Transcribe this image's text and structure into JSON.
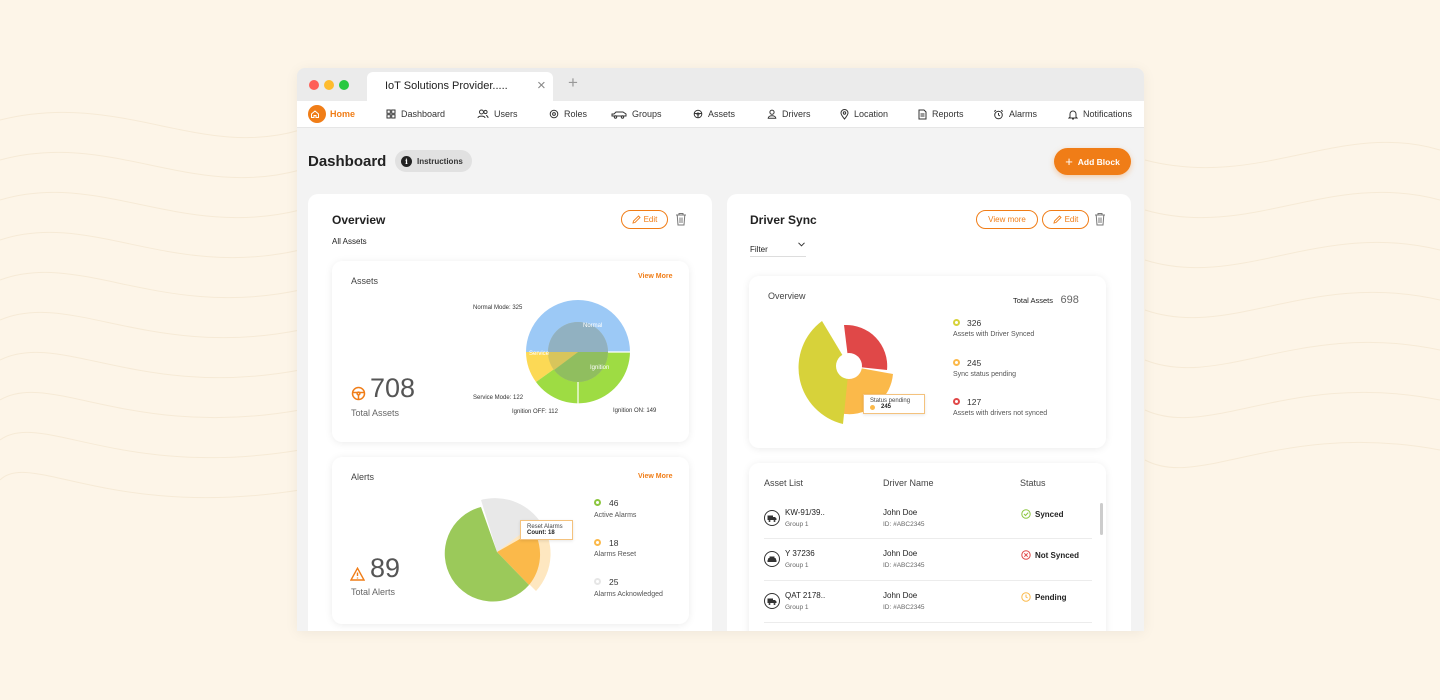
{
  "browser": {
    "tab_title": "IoT Solutions Provider.....",
    "tab_close": "×",
    "new_tab": "+"
  },
  "nav": {
    "home": "Home",
    "items": [
      "Dashboard",
      "Users",
      "Roles",
      "Groups",
      "Assets",
      "Drivers",
      "Location",
      "Reports",
      "Alarms",
      "Notifications"
    ]
  },
  "page": {
    "title": "Dashboard",
    "instructions": "Instructions",
    "add_block": "Add Block"
  },
  "overview_panel": {
    "title": "Overview",
    "edit": "Edit",
    "subtitle": "All Assets",
    "assets_card": {
      "title": "Assets",
      "view_more": "View More",
      "total": "708",
      "total_label": "Total Assets",
      "segment_labels": [
        "Normal",
        "Service",
        "Ignition"
      ],
      "callouts": {
        "normal": "Normal Mode: 325",
        "service": "Service Mode: 122",
        "ign_off": "Ignition OFF: 112",
        "ign_on": "Ignition ON: 149"
      }
    },
    "alerts_card": {
      "title": "Alerts",
      "view_more": "View More",
      "total": "89",
      "total_label": "Total Alerts",
      "tooltip_title": "Reset Alarms",
      "tooltip_count_label": "Count:",
      "tooltip_count": "18",
      "legend": [
        {
          "value": "46",
          "label": "Active Alarms",
          "color": "#8cc63f"
        },
        {
          "value": "18",
          "label": "Alarms Reset",
          "color": "#fbb94a"
        },
        {
          "value": "25",
          "label": "Alarms Acknowledged",
          "color": "#e6e6e6"
        }
      ]
    }
  },
  "driver_panel": {
    "title": "Driver Sync",
    "view_more": "View more",
    "edit": "Edit",
    "filter": "Filter",
    "overview_card": {
      "title": "Overview",
      "total_label": "Total Assets",
      "total": "698",
      "tooltip_title": "Status pending",
      "tooltip_value": "245",
      "legend": [
        {
          "value": "326",
          "label": "Assets with Driver Synced",
          "color": "#d7d23a"
        },
        {
          "value": "245",
          "label": "Sync status pending",
          "color": "#fbb94a"
        },
        {
          "value": "127",
          "label": "Assets with drivers not synced",
          "color": "#e04848"
        }
      ]
    },
    "table": {
      "headers": [
        "Asset List",
        "Driver Name",
        "Status"
      ],
      "rows": [
        {
          "asset": "KW-91/39..",
          "group": "Group 1",
          "driver": "John Doe",
          "id": "ID: #ABC2345",
          "status": "Synced",
          "icon": "truck-icon"
        },
        {
          "asset": "Y 37236",
          "group": "Group 1",
          "driver": "John Doe",
          "id": "ID: #ABC2345",
          "status": "Not Synced",
          "icon": "car-icon"
        },
        {
          "asset": "QAT 2178..",
          "group": "Group 1",
          "driver": "John Doe",
          "id": "ID: #ABC2345",
          "status": "Pending",
          "icon": "truck-icon"
        }
      ]
    }
  },
  "colors": {
    "accent": "#f07d17",
    "synced": "#8cc63f",
    "not_synced": "#e04848",
    "pending": "#fbb94a"
  }
}
